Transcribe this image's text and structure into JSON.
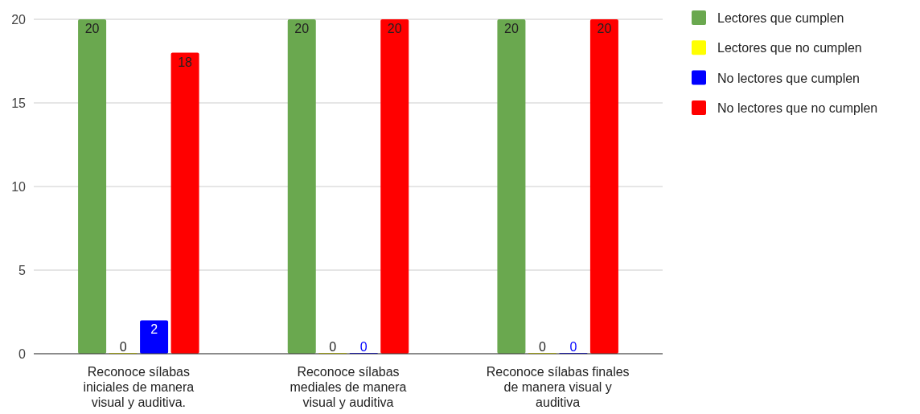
{
  "chart_data": {
    "type": "bar",
    "categories": [
      "Reconoce sílabas iniciales de manera visual y auditiva.",
      "Reconoce sílabas mediales de manera visual y auditiva",
      "Reconoce sílabas finales de manera visual y auditiva"
    ],
    "series": [
      {
        "name": "Lectores que cumplen",
        "color": "#6aa84f",
        "values": [
          20,
          20,
          20
        ]
      },
      {
        "name": "Lectores que no cumplen",
        "color": "#ffff00",
        "values": [
          0,
          0,
          0
        ]
      },
      {
        "name": "No lectores que cumplen",
        "color": "#0000ff",
        "values": [
          2,
          0,
          0
        ]
      },
      {
        "name": "No lectores que no cumplen",
        "color": "#ff0000",
        "values": [
          18,
          20,
          20
        ]
      }
    ],
    "ylim": [
      0,
      20
    ],
    "yticks": [
      0,
      5,
      10,
      15,
      20
    ],
    "grid": "y",
    "legend": "right",
    "data_labels": true
  }
}
